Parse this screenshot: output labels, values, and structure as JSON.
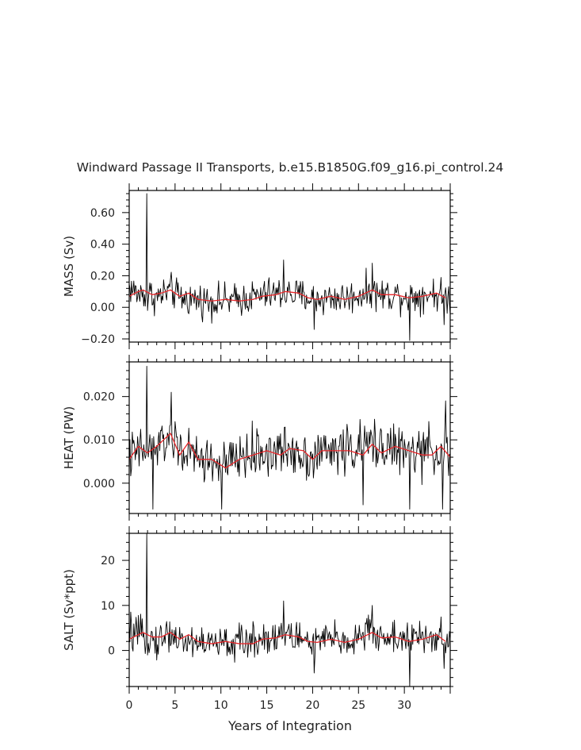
{
  "title": "Windward Passage II Transports, b.e15.B1850G.f09_g16.pi_control.24",
  "xlabel": "Years of Integration",
  "colors": {
    "raw": "#000000",
    "smoothed": "#e8262a",
    "axes": "#000000"
  },
  "chart_data": [
    {
      "type": "line",
      "ylabel": "MASS (Sv)",
      "xlim": [
        0,
        35
      ],
      "ylim": [
        -0.22,
        0.74
      ],
      "yticks": [
        -0.2,
        0.0,
        0.2,
        0.4,
        0.6
      ],
      "ytick_labels": [
        "−0.20",
        "0.00",
        "0.20",
        "0.40",
        "0.60"
      ],
      "xticks": [
        0,
        5,
        10,
        15,
        20,
        25,
        30
      ],
      "grid": false,
      "series": [
        {
          "style": "raw-monthly",
          "spikes": [
            [
              1.9,
              0.72
            ],
            [
              2.0,
              -0.02
            ],
            [
              16.8,
              0.3
            ],
            [
              20.2,
              -0.14
            ],
            [
              26.5,
              0.28
            ],
            [
              30.6,
              -0.21
            ],
            [
              34.3,
              -0.11
            ]
          ],
          "noise_sd": 0.065,
          "values": [
            {
              "x": 0.0,
              "y": 0.13
            },
            {
              "x": 1.0,
              "y": 0.08
            },
            {
              "x": 2.0,
              "y": 0.09
            },
            {
              "x": 3.0,
              "y": 0.06
            },
            {
              "x": 4.5,
              "y": 0.11
            },
            {
              "x": 5.5,
              "y": 0.06
            },
            {
              "x": 7.0,
              "y": 0.05
            },
            {
              "x": 9.0,
              "y": 0.04
            },
            {
              "x": 11.0,
              "y": 0.04
            },
            {
              "x": 13.0,
              "y": 0.06
            },
            {
              "x": 15.0,
              "y": 0.08
            },
            {
              "x": 17.0,
              "y": 0.09
            },
            {
              "x": 19.0,
              "y": 0.07
            },
            {
              "x": 20.5,
              "y": 0.05
            },
            {
              "x": 22.0,
              "y": 0.06
            },
            {
              "x": 24.0,
              "y": 0.06
            },
            {
              "x": 26.0,
              "y": 0.1
            },
            {
              "x": 27.5,
              "y": 0.08
            },
            {
              "x": 29.0,
              "y": 0.08
            },
            {
              "x": 31.0,
              "y": 0.07
            },
            {
              "x": 33.0,
              "y": 0.09
            },
            {
              "x": 35.0,
              "y": 0.06
            }
          ]
        },
        {
          "style": "smoothed-annual",
          "values": [
            {
              "x": 0.0,
              "y": 0.07
            },
            {
              "x": 1.0,
              "y": 0.1
            },
            {
              "x": 1.5,
              "y": 0.11
            },
            {
              "x": 2.5,
              "y": 0.08
            },
            {
              "x": 3.5,
              "y": 0.09
            },
            {
              "x": 4.5,
              "y": 0.11
            },
            {
              "x": 5.5,
              "y": 0.07
            },
            {
              "x": 6.5,
              "y": 0.09
            },
            {
              "x": 7.5,
              "y": 0.05
            },
            {
              "x": 9.0,
              "y": 0.04
            },
            {
              "x": 10.5,
              "y": 0.05
            },
            {
              "x": 12.0,
              "y": 0.04
            },
            {
              "x": 13.5,
              "y": 0.05
            },
            {
              "x": 14.5,
              "y": 0.07
            },
            {
              "x": 16.0,
              "y": 0.08
            },
            {
              "x": 17.0,
              "y": 0.1
            },
            {
              "x": 18.5,
              "y": 0.09
            },
            {
              "x": 19.5,
              "y": 0.06
            },
            {
              "x": 20.5,
              "y": 0.05
            },
            {
              "x": 22.0,
              "y": 0.07
            },
            {
              "x": 23.5,
              "y": 0.05
            },
            {
              "x": 25.0,
              "y": 0.07
            },
            {
              "x": 26.5,
              "y": 0.11
            },
            {
              "x": 27.5,
              "y": 0.08
            },
            {
              "x": 29.0,
              "y": 0.08
            },
            {
              "x": 30.5,
              "y": 0.06
            },
            {
              "x": 32.0,
              "y": 0.07
            },
            {
              "x": 33.5,
              "y": 0.09
            },
            {
              "x": 34.5,
              "y": 0.06
            }
          ]
        }
      ]
    },
    {
      "type": "line",
      "ylabel": "HEAT (PW)",
      "xlim": [
        0,
        35
      ],
      "ylim": [
        -0.007,
        0.028
      ],
      "yticks": [
        0.0,
        0.01,
        0.02
      ],
      "ytick_labels": [
        "0.000",
        "0.010",
        "0.020"
      ],
      "xticks": [
        0,
        5,
        10,
        15,
        20,
        25,
        30
      ],
      "grid": false,
      "series": [
        {
          "style": "raw-monthly",
          "spikes": [
            [
              1.9,
              0.027
            ],
            [
              2.6,
              -0.006
            ],
            [
              4.6,
              0.021
            ],
            [
              10.1,
              -0.006
            ],
            [
              25.5,
              -0.005
            ],
            [
              30.6,
              -0.006
            ],
            [
              34.2,
              -0.006
            ],
            [
              34.5,
              0.019
            ]
          ],
          "noise_sd": 0.0035,
          "values": [
            {
              "x": 0.0,
              "y": 0.006
            },
            {
              "x": 1.0,
              "y": 0.007
            },
            {
              "x": 2.0,
              "y": 0.008
            },
            {
              "x": 3.0,
              "y": 0.008
            },
            {
              "x": 4.5,
              "y": 0.011
            },
            {
              "x": 5.5,
              "y": 0.008
            },
            {
              "x": 7.0,
              "y": 0.006
            },
            {
              "x": 9.0,
              "y": 0.005
            },
            {
              "x": 10.5,
              "y": 0.004
            },
            {
              "x": 12.0,
              "y": 0.006
            },
            {
              "x": 14.0,
              "y": 0.007
            },
            {
              "x": 16.0,
              "y": 0.007
            },
            {
              "x": 18.0,
              "y": 0.008
            },
            {
              "x": 19.5,
              "y": 0.006
            },
            {
              "x": 21.0,
              "y": 0.007
            },
            {
              "x": 23.0,
              "y": 0.008
            },
            {
              "x": 25.0,
              "y": 0.008
            },
            {
              "x": 26.5,
              "y": 0.009
            },
            {
              "x": 28.0,
              "y": 0.009
            },
            {
              "x": 30.0,
              "y": 0.007
            },
            {
              "x": 32.0,
              "y": 0.007
            },
            {
              "x": 34.0,
              "y": 0.008
            },
            {
              "x": 35.0,
              "y": 0.006
            }
          ]
        },
        {
          "style": "smoothed-annual",
          "values": [
            {
              "x": 0.0,
              "y": 0.0055
            },
            {
              "x": 1.0,
              "y": 0.0085
            },
            {
              "x": 2.0,
              "y": 0.007
            },
            {
              "x": 3.0,
              "y": 0.0085
            },
            {
              "x": 4.5,
              "y": 0.0115
            },
            {
              "x": 5.5,
              "y": 0.0065
            },
            {
              "x": 6.5,
              "y": 0.0095
            },
            {
              "x": 7.5,
              "y": 0.0055
            },
            {
              "x": 9.0,
              "y": 0.0055
            },
            {
              "x": 10.5,
              "y": 0.0035
            },
            {
              "x": 12.0,
              "y": 0.0055
            },
            {
              "x": 13.5,
              "y": 0.0065
            },
            {
              "x": 15.0,
              "y": 0.0075
            },
            {
              "x": 16.5,
              "y": 0.0065
            },
            {
              "x": 17.5,
              "y": 0.008
            },
            {
              "x": 19.0,
              "y": 0.0075
            },
            {
              "x": 20.0,
              "y": 0.0055
            },
            {
              "x": 21.0,
              "y": 0.0075
            },
            {
              "x": 22.5,
              "y": 0.0075
            },
            {
              "x": 24.0,
              "y": 0.0075
            },
            {
              "x": 25.5,
              "y": 0.0065
            },
            {
              "x": 26.5,
              "y": 0.009
            },
            {
              "x": 27.5,
              "y": 0.007
            },
            {
              "x": 29.0,
              "y": 0.0085
            },
            {
              "x": 30.5,
              "y": 0.0075
            },
            {
              "x": 32.0,
              "y": 0.0065
            },
            {
              "x": 33.0,
              "y": 0.0065
            },
            {
              "x": 34.0,
              "y": 0.0085
            },
            {
              "x": 35.0,
              "y": 0.006
            }
          ]
        }
      ]
    },
    {
      "type": "line",
      "ylabel": "SALT (Sv*ppt)",
      "xlim": [
        0,
        35
      ],
      "ylim": [
        -8,
        26
      ],
      "yticks": [
        0,
        10,
        20
      ],
      "ytick_labels": [
        "0",
        "10",
        "20"
      ],
      "xticks": [
        0,
        5,
        10,
        15,
        20,
        25,
        30
      ],
      "xtick_labels": [
        "0",
        "5",
        "10",
        "15",
        "20",
        "25",
        "30"
      ],
      "grid": false,
      "series": [
        {
          "style": "raw-monthly",
          "spikes": [
            [
              1.9,
              26
            ],
            [
              2.0,
              -1
            ],
            [
              16.8,
              11
            ],
            [
              20.2,
              -5
            ],
            [
              26.5,
              10
            ],
            [
              30.6,
              -8
            ],
            [
              34.3,
              -4
            ]
          ],
          "noise_sd": 2.4,
          "values": [
            {
              "x": 0.0,
              "y": 4
            },
            {
              "x": 1.0,
              "y": 3
            },
            {
              "x": 2.0,
              "y": 3
            },
            {
              "x": 3.0,
              "y": 2
            },
            {
              "x": 4.5,
              "y": 4
            },
            {
              "x": 5.5,
              "y": 2
            },
            {
              "x": 7.0,
              "y": 2
            },
            {
              "x": 9.0,
              "y": 1.5
            },
            {
              "x": 11.0,
              "y": 1.5
            },
            {
              "x": 13.0,
              "y": 2
            },
            {
              "x": 15.0,
              "y": 3
            },
            {
              "x": 17.0,
              "y": 3.5
            },
            {
              "x": 19.0,
              "y": 2.5
            },
            {
              "x": 20.5,
              "y": 2
            },
            {
              "x": 22.0,
              "y": 2.5
            },
            {
              "x": 24.0,
              "y": 2
            },
            {
              "x": 26.0,
              "y": 4
            },
            {
              "x": 27.5,
              "y": 3
            },
            {
              "x": 29.0,
              "y": 3
            },
            {
              "x": 31.0,
              "y": 2.5
            },
            {
              "x": 33.0,
              "y": 3
            },
            {
              "x": 35.0,
              "y": 2
            }
          ]
        },
        {
          "style": "smoothed-annual",
          "values": [
            {
              "x": 0.0,
              "y": 2.5
            },
            {
              "x": 1.0,
              "y": 3.5
            },
            {
              "x": 1.5,
              "y": 4
            },
            {
              "x": 2.5,
              "y": 3
            },
            {
              "x": 3.5,
              "y": 3
            },
            {
              "x": 4.5,
              "y": 4
            },
            {
              "x": 5.5,
              "y": 2.5
            },
            {
              "x": 6.5,
              "y": 3.5
            },
            {
              "x": 7.5,
              "y": 2
            },
            {
              "x": 9.0,
              "y": 1.5
            },
            {
              "x": 10.5,
              "y": 2
            },
            {
              "x": 12.0,
              "y": 1.5
            },
            {
              "x": 13.5,
              "y": 1.5
            },
            {
              "x": 14.5,
              "y": 2.5
            },
            {
              "x": 16.0,
              "y": 2.8
            },
            {
              "x": 17.0,
              "y": 3.5
            },
            {
              "x": 18.5,
              "y": 3
            },
            {
              "x": 19.5,
              "y": 2
            },
            {
              "x": 20.5,
              "y": 1.8
            },
            {
              "x": 22.0,
              "y": 2.5
            },
            {
              "x": 23.5,
              "y": 1.8
            },
            {
              "x": 25.0,
              "y": 2.5
            },
            {
              "x": 26.5,
              "y": 4
            },
            {
              "x": 27.5,
              "y": 2.8
            },
            {
              "x": 29.0,
              "y": 3
            },
            {
              "x": 30.5,
              "y": 2
            },
            {
              "x": 32.0,
              "y": 2.5
            },
            {
              "x": 33.5,
              "y": 3.5
            },
            {
              "x": 34.5,
              "y": 2
            }
          ]
        }
      ]
    }
  ]
}
